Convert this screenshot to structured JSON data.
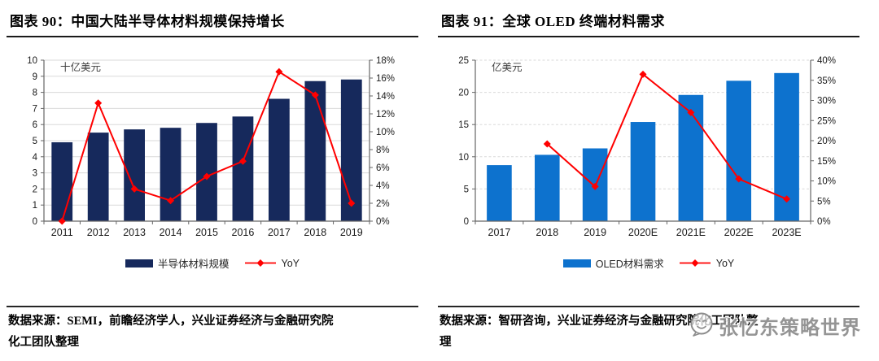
{
  "watermark": {
    "text": "张忆东策略世界"
  },
  "sources": [
    {
      "line1": "数据来源：SEMI，前瞻经济学人，兴业证券经济与金融研究院",
      "line2": "化工团队整理"
    },
    {
      "line1": "数据来源：智研咨询，兴业证券经济与金融研究院化工团队整",
      "line2": "理"
    }
  ],
  "chart_data": [
    {
      "type": "bar+line",
      "title": "图表 90：中国大陆半导体材料规模保持增长",
      "unit_label": "十亿美元",
      "categories": [
        "2011",
        "2012",
        "2013",
        "2014",
        "2015",
        "2016",
        "2017",
        "2018",
        "2019"
      ],
      "series": [
        {
          "name": "半导体材料规模",
          "type": "bar",
          "axis": "left",
          "values": [
            4.9,
            5.5,
            5.7,
            5.8,
            6.1,
            6.5,
            7.6,
            8.7,
            8.8
          ],
          "color": "#16295c"
        },
        {
          "name": "YoY",
          "type": "line",
          "axis": "right",
          "values": [
            0.0,
            13.2,
            3.6,
            2.3,
            5.0,
            6.7,
            16.7,
            14.1,
            2.0
          ],
          "color": "#ff0000"
        }
      ],
      "left_axis": {
        "min": 0,
        "max": 10,
        "step": 1
      },
      "right_axis": {
        "min": 0,
        "max": 18,
        "step": 2,
        "format": "percent"
      },
      "grid": "solid",
      "legend_position": "bottom"
    },
    {
      "type": "bar+line",
      "title": "图表 91：全球 OLED 终端材料需求",
      "unit_label": "亿美元",
      "categories": [
        "2017",
        "2018",
        "2019",
        "2020E",
        "2021E",
        "2022E",
        "2023E"
      ],
      "series": [
        {
          "name": "OLED材料需求",
          "type": "bar",
          "axis": "left",
          "values": [
            8.7,
            10.3,
            11.3,
            15.4,
            19.6,
            21.8,
            23.0
          ],
          "color": "#0d72ce"
        },
        {
          "name": "YoY",
          "type": "line",
          "axis": "right",
          "values": [
            null,
            19.2,
            8.6,
            36.5,
            27.0,
            10.5,
            5.5
          ],
          "color": "#ff0000"
        }
      ],
      "left_axis": {
        "min": 0,
        "max": 25,
        "step": 5
      },
      "right_axis": {
        "min": 0,
        "max": 40,
        "step": 5,
        "format": "percent"
      },
      "grid": "dashed",
      "legend_position": "bottom"
    }
  ]
}
